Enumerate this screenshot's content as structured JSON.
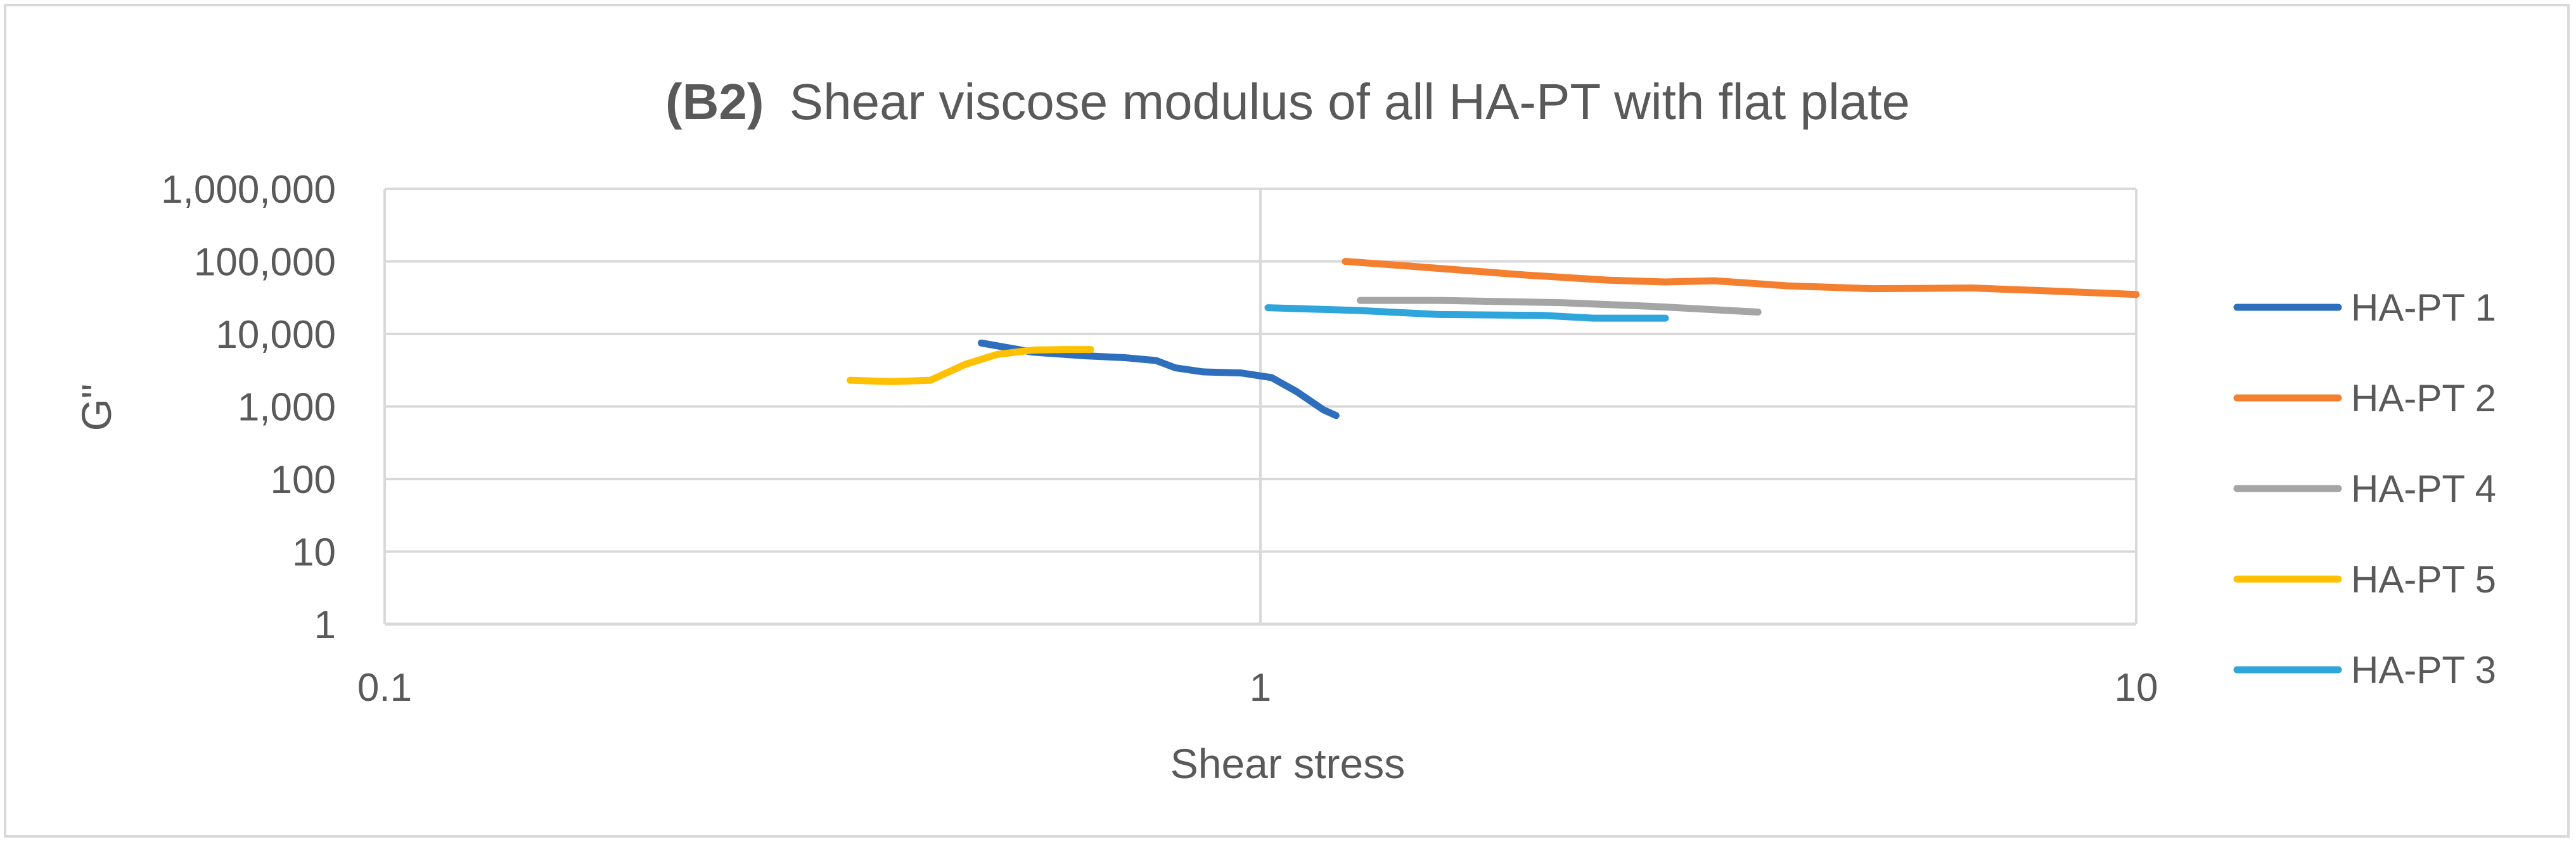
{
  "chart_data": {
    "type": "line",
    "title": "Shear viscose modulus of all HA-PT with flat plate",
    "title_prefix": "(B2)",
    "xlabel": "Shear stress",
    "ylabel": "G\"",
    "xscale": "log",
    "yscale": "log",
    "xlim": [
      0.1,
      10
    ],
    "ylim": [
      1,
      1000000
    ],
    "x_ticks": [
      {
        "value": 0.1,
        "label": "0.1"
      },
      {
        "value": 1,
        "label": "1"
      },
      {
        "value": 10,
        "label": "10"
      }
    ],
    "y_ticks": [
      {
        "value": 1,
        "label": "1"
      },
      {
        "value": 10,
        "label": "10"
      },
      {
        "value": 100,
        "label": "100"
      },
      {
        "value": 1000,
        "label": "1,000"
      },
      {
        "value": 10000,
        "label": "10,000"
      },
      {
        "value": 100000,
        "label": "100,000"
      },
      {
        "value": 1000000,
        "label": "1,000,000"
      }
    ],
    "grid": true,
    "legend_position": "right",
    "series": [
      {
        "name": "HA-PT 1",
        "color": "#2e6fbd",
        "points": [
          [
            0.48,
            7500
          ],
          [
            0.55,
            5600
          ],
          [
            0.63,
            5000
          ],
          [
            0.7,
            4700
          ],
          [
            0.76,
            4300
          ],
          [
            0.8,
            3400
          ],
          [
            0.86,
            3000
          ],
          [
            0.95,
            2900
          ],
          [
            1.03,
            2500
          ],
          [
            1.1,
            1600
          ],
          [
            1.18,
            900
          ],
          [
            1.22,
            750
          ]
        ]
      },
      {
        "name": "HA-PT 2",
        "color": "#f47f2f",
        "points": [
          [
            1.25,
            100000
          ],
          [
            1.5,
            85000
          ],
          [
            2.0,
            65000
          ],
          [
            2.5,
            55000
          ],
          [
            2.9,
            52000
          ],
          [
            3.3,
            54000
          ],
          [
            4.0,
            46000
          ],
          [
            5.0,
            42000
          ],
          [
            6.5,
            43000
          ],
          [
            8.0,
            39000
          ],
          [
            10.0,
            35000
          ]
        ]
      },
      {
        "name": "HA-PT 4",
        "color": "#a5a5a5",
        "points": [
          [
            1.3,
            29000
          ],
          [
            1.6,
            29000
          ],
          [
            2.2,
            27000
          ],
          [
            2.8,
            24000
          ],
          [
            3.7,
            20000
          ]
        ]
      },
      {
        "name": "HA-PT 5",
        "color": "#ffc000",
        "points": [
          [
            0.34,
            2300
          ],
          [
            0.38,
            2200
          ],
          [
            0.42,
            2300
          ],
          [
            0.46,
            3800
          ],
          [
            0.5,
            5200
          ],
          [
            0.55,
            6000
          ],
          [
            0.6,
            6100
          ],
          [
            0.64,
            6100
          ]
        ]
      },
      {
        "name": "HA-PT 3",
        "color": "#2ea6dc",
        "points": [
          [
            1.02,
            23000
          ],
          [
            1.3,
            21000
          ],
          [
            1.6,
            18500
          ],
          [
            2.1,
            18000
          ],
          [
            2.4,
            16500
          ],
          [
            2.9,
            16500
          ]
        ]
      }
    ]
  }
}
